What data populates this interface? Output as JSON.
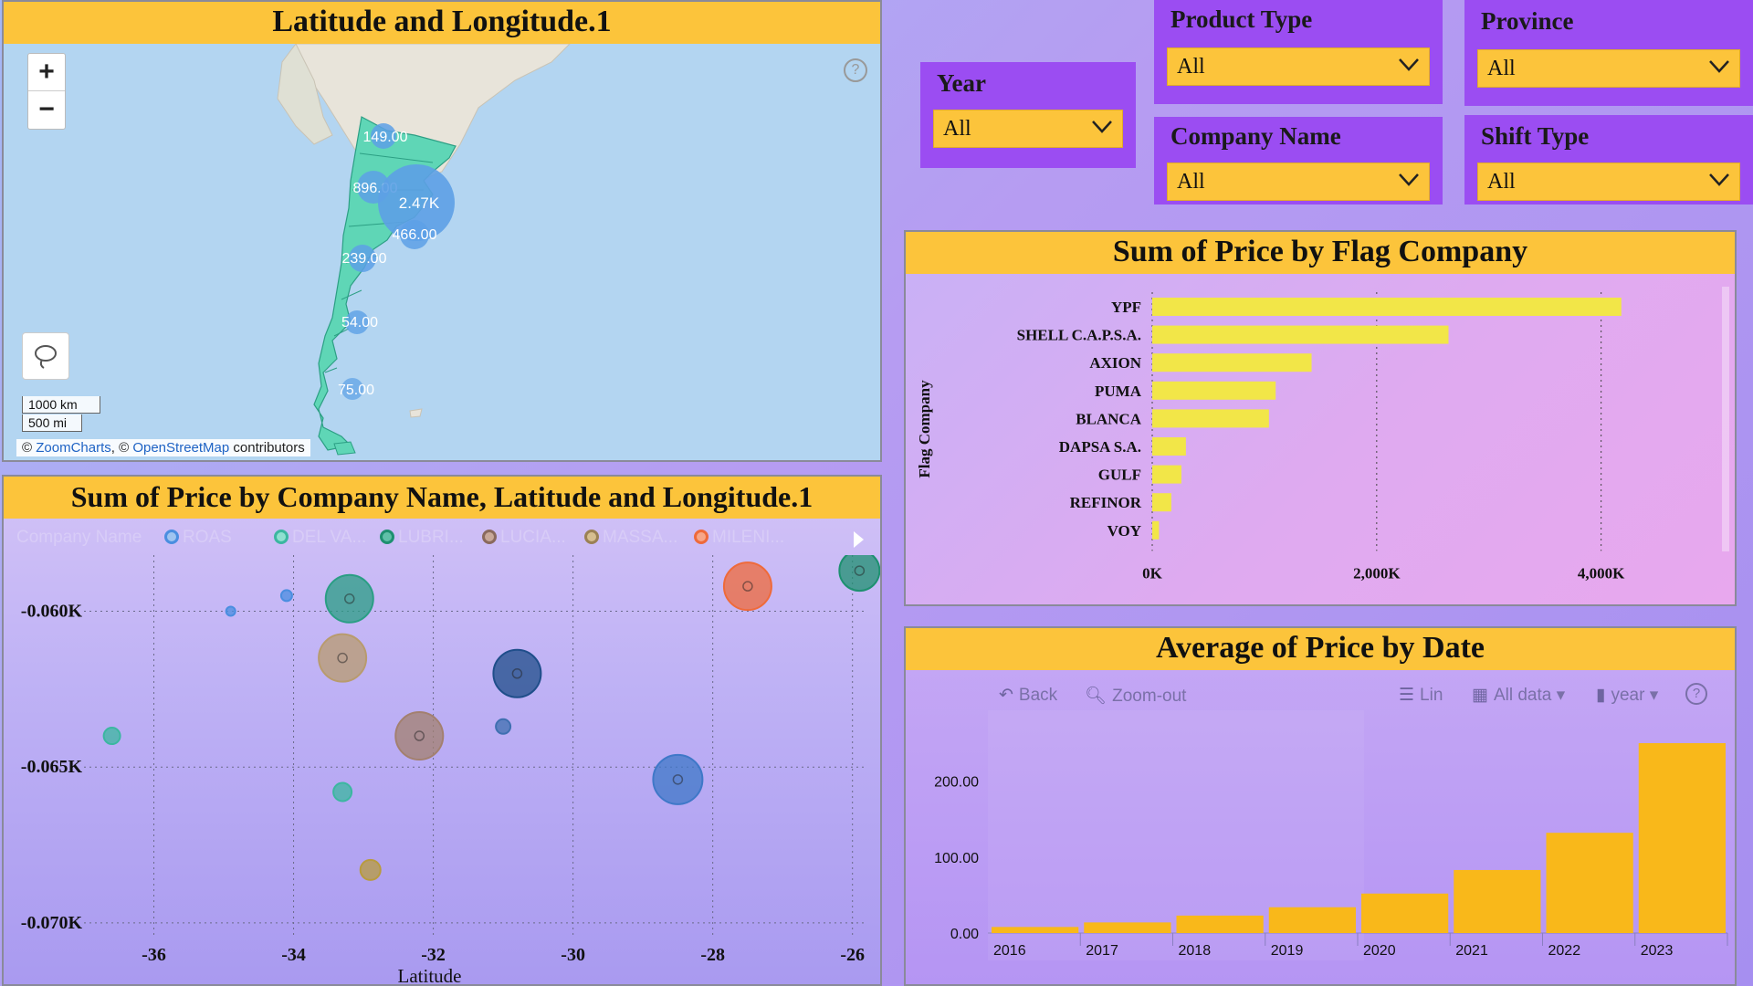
{
  "map": {
    "title": "Latitude and Longitude.1",
    "zoom_in": "+",
    "zoom_out": "−",
    "help": "?",
    "scale_km": "1000 km",
    "scale_mi": "500 mi",
    "attribution": {
      "prefix1": "© ",
      "zoomcharts": "ZoomCharts",
      "mid": ", © ",
      "osm": "OpenStreetMap",
      "suffix": " contributors"
    },
    "bubbles": [
      "149.00",
      "896.00",
      "2.47K",
      "466.00",
      "239.00",
      "54.00",
      "75.00"
    ]
  },
  "scatter": {
    "title": "Sum of Price by Company Name, Latitude and Longitude.1",
    "legend_title": "Company Name",
    "legend": [
      {
        "label": "ROAS",
        "color": "#4a8ee0"
      },
      {
        "label": "DEL VA...",
        "color": "#3bb7a0"
      },
      {
        "label": "LUBRI...",
        "color": "#1e9070"
      },
      {
        "label": "LUCIA...",
        "color": "#a3806f"
      },
      {
        "label": "MASSA...",
        "color": "#b89b6e"
      },
      {
        "label": "MILENI...",
        "color": "#ef6a3a"
      }
    ],
    "xlabel": "Latitude",
    "xticks": [
      "-36",
      "-34",
      "-32",
      "-30",
      "-28",
      "-26"
    ],
    "yticks": [
      "-0.060K",
      "-0.065K",
      "-0.070K"
    ]
  },
  "filters": {
    "year": {
      "label": "Year",
      "value": "All"
    },
    "product_type": {
      "label": "Product Type",
      "value": "All"
    },
    "province": {
      "label": "Province",
      "value": "All"
    },
    "company_name": {
      "label": "Company Name",
      "value": "All"
    },
    "shift_type": {
      "label": "Shift Type",
      "value": "All"
    }
  },
  "flag_chart": {
    "title": "Sum of Price by Flag Company",
    "ylabel": "Flag Company",
    "xticks": [
      "0K",
      "2,000K",
      "4,000K"
    ]
  },
  "date_chart": {
    "title": "Average of Price by Date",
    "toolbar": {
      "back": "Back",
      "zoomout": "Zoom-out",
      "lin": "Lin",
      "alldata": "All data",
      "year": "year",
      "help": "?"
    },
    "yticks": [
      "200.00",
      "100.00",
      "0.00"
    ]
  },
  "chart_data": [
    {
      "type": "scatter",
      "title": "Sum of Price by Company Name, Latitude and Longitude.1",
      "xlabel": "Latitude",
      "ylabel": "",
      "xlim": [
        -37,
        -25.8
      ],
      "ylim": [
        -0.0705,
        -0.0582
      ],
      "points": [
        {
          "x": -34.1,
          "y": -0.0595,
          "r": 6,
          "color": "#4a8ee0"
        },
        {
          "x": -34.9,
          "y": -0.06,
          "r": 5,
          "color": "#4a8ee0"
        },
        {
          "x": -33.2,
          "y": -0.0596,
          "r": 26,
          "color": "#2a9e84"
        },
        {
          "x": -33.3,
          "y": -0.0615,
          "r": 26,
          "color": "#b89b6e"
        },
        {
          "x": -30.8,
          "y": -0.062,
          "r": 26,
          "color": "#1f4e8a"
        },
        {
          "x": -27.5,
          "y": -0.0592,
          "r": 26,
          "color": "#ef6a3a"
        },
        {
          "x": -25.9,
          "y": -0.0587,
          "r": 22,
          "color": "#1e9070"
        },
        {
          "x": -36.6,
          "y": -0.064,
          "r": 9,
          "color": "#3bb7a0"
        },
        {
          "x": -32.2,
          "y": -0.064,
          "r": 26,
          "color": "#a3806f"
        },
        {
          "x": -31.0,
          "y": -0.0637,
          "r": 8,
          "color": "#3f6fb0"
        },
        {
          "x": -28.5,
          "y": -0.0654,
          "r": 27,
          "color": "#3f78c8"
        },
        {
          "x": -33.3,
          "y": -0.0658,
          "r": 10,
          "color": "#3bb7a0"
        },
        {
          "x": -32.9,
          "y": -0.0683,
          "r": 11,
          "color": "#b89b3e"
        }
      ]
    },
    {
      "type": "bar",
      "orientation": "horizontal",
      "title": "Sum of Price by Flag Company",
      "ylabel": "Flag Company",
      "xlabel": "",
      "categories": [
        "YPF",
        "SHELL C.A.P.S.A.",
        "AXION",
        "PUMA",
        "BLANCA",
        "DAPSA S.A.",
        "GULF",
        "REFINOR",
        "VOY"
      ],
      "values": [
        4180,
        2640,
        1420,
        1100,
        1040,
        300,
        260,
        170,
        60
      ],
      "xlim": [
        0,
        4800
      ],
      "color": "#f2e648"
    },
    {
      "type": "bar",
      "title": "Average of Price by Date",
      "categories": [
        "2016",
        "2017",
        "2018",
        "2019",
        "2020",
        "2021",
        "2022",
        "2023"
      ],
      "values": [
        8,
        14,
        23,
        34,
        52,
        83,
        132,
        250
      ],
      "ylim": [
        0,
        250
      ],
      "color": "#f9b81a"
    }
  ]
}
